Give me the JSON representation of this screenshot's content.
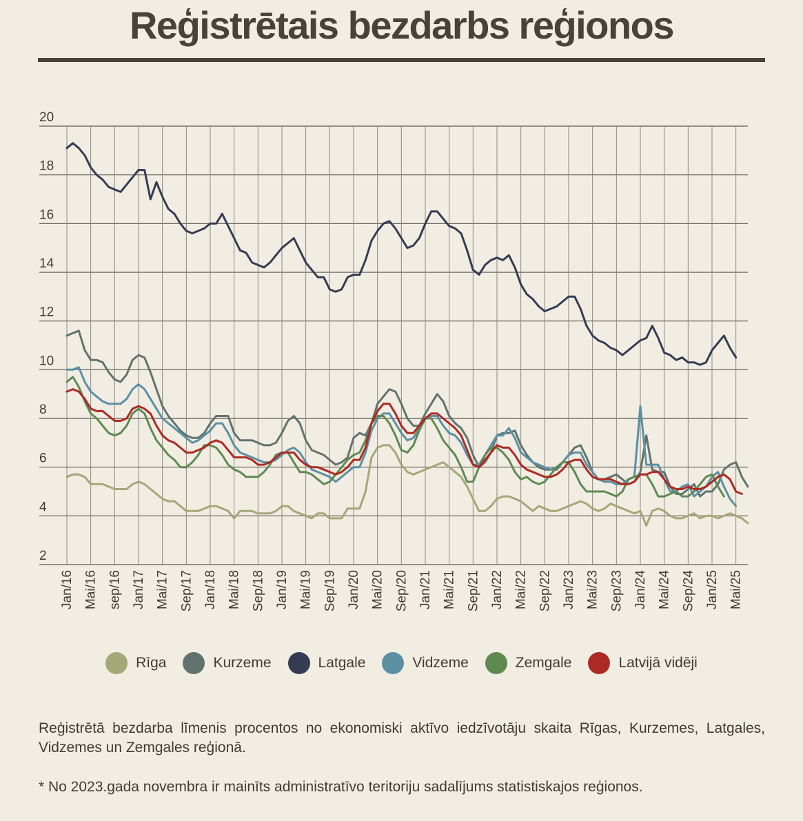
{
  "title": "Reģistrētais bezdarbs reģionos",
  "chart_data": {
    "type": "line",
    "ylim": [
      2,
      20
    ],
    "yticks": [
      "2",
      "4",
      "6",
      "8",
      "10",
      "12",
      "14",
      "16",
      "18",
      "20"
    ],
    "grid": true,
    "legend_position": "bottom",
    "x_tick_labels": [
      "Jan/16",
      "Mai/16",
      "sep/16",
      "Jan/17",
      "Mai/17",
      "Sep/17",
      "Jan/18",
      "Mai/18",
      "Sep/18",
      "Jan/19",
      "Mai/19",
      "Sep/19",
      "Jan/20",
      "Mai/20",
      "Sep/20",
      "Jan/21",
      "Mai/21",
      "Sep/21",
      "Jan/22",
      "Mai/22",
      "Sep/22",
      "Jan/23",
      "Mai/23",
      "Sep/23",
      "Jan/24",
      "Mai/24",
      "Sep/24",
      "Jan/25",
      "Mai/25"
    ],
    "series": [
      {
        "name": "Rīga",
        "color": "#a3a878",
        "values": [
          5.6,
          5.7,
          5.7,
          5.6,
          5.3,
          5.3,
          5.3,
          5.2,
          5.1,
          5.1,
          5.1,
          5.3,
          5.4,
          5.3,
          5.1,
          4.9,
          4.7,
          4.6,
          4.6,
          4.4,
          4.2,
          4.2,
          4.2,
          4.3,
          4.4,
          4.4,
          4.3,
          4.2,
          3.9,
          4.2,
          4.2,
          4.2,
          4.1,
          4.1,
          4.1,
          4.2,
          4.4,
          4.4,
          4.2,
          4.1,
          4.0,
          3.9,
          4.1,
          4.1,
          3.9,
          3.9,
          3.9,
          4.3,
          4.3,
          4.3,
          5.0,
          6.4,
          6.8,
          6.9,
          6.9,
          6.6,
          6.1,
          5.8,
          5.7,
          5.8,
          5.9,
          6.0,
          6.1,
          6.2,
          6.0,
          5.8,
          5.6,
          5.2,
          4.7,
          4.2,
          4.2,
          4.4,
          4.7,
          4.8,
          4.8,
          4.7,
          4.6,
          4.4,
          4.2,
          4.4,
          4.3,
          4.2,
          4.2,
          4.3,
          4.4,
          4.5,
          4.6,
          4.5,
          4.3,
          4.2,
          4.3,
          4.5,
          4.4,
          4.3,
          4.2,
          4.1,
          4.2,
          3.6,
          4.2,
          4.3,
          4.2,
          4.0,
          3.9,
          3.9,
          4.0,
          4.1,
          3.9,
          4.0,
          4.0,
          3.9,
          4.0,
          4.1,
          4.0,
          3.9,
          3.7
        ]
      },
      {
        "name": "Kurzeme",
        "color": "#62736e",
        "values": [
          11.4,
          11.5,
          11.6,
          10.8,
          10.4,
          10.4,
          10.3,
          9.9,
          9.6,
          9.5,
          9.8,
          10.4,
          10.6,
          10.5,
          9.9,
          9.2,
          8.5,
          8.1,
          7.8,
          7.5,
          7.3,
          7.2,
          7.2,
          7.4,
          7.8,
          8.1,
          8.1,
          8.1,
          7.4,
          7.1,
          7.1,
          7.1,
          7.0,
          6.9,
          6.9,
          7.0,
          7.4,
          7.9,
          8.1,
          7.8,
          7.1,
          6.7,
          6.6,
          6.5,
          6.3,
          6.1,
          6.2,
          6.4,
          7.2,
          7.4,
          7.3,
          7.8,
          8.6,
          8.9,
          9.2,
          9.1,
          8.6,
          8.0,
          7.7,
          7.7,
          8.2,
          8.6,
          9.0,
          8.7,
          8.1,
          7.8,
          7.6,
          7.2,
          6.5,
          6.0,
          6.2,
          6.6,
          7.3,
          7.4,
          7.4,
          7.5,
          6.9,
          6.5,
          6.2,
          6.0,
          5.9,
          5.9,
          5.9,
          6.2,
          6.5,
          6.8,
          6.9,
          6.4,
          5.8,
          5.5,
          5.5,
          5.6,
          5.7,
          5.5,
          5.3,
          5.4,
          5.8,
          7.3,
          5.9,
          5.8,
          5.8,
          5.2,
          4.9,
          4.9,
          5.1,
          5.3,
          4.8,
          5.0,
          5.0,
          5.3,
          5.9,
          6.1,
          6.2,
          5.6,
          5.2
        ]
      },
      {
        "name": "Latgale",
        "color": "#333c52",
        "values": [
          19.1,
          19.3,
          19.1,
          18.8,
          18.3,
          18.0,
          17.8,
          17.5,
          17.4,
          17.3,
          17.6,
          17.9,
          18.2,
          18.2,
          17.0,
          17.7,
          17.1,
          16.6,
          16.4,
          16.0,
          15.7,
          15.6,
          15.7,
          15.8,
          16.0,
          16.0,
          16.4,
          15.9,
          15.4,
          14.9,
          14.8,
          14.4,
          14.3,
          14.2,
          14.4,
          14.7,
          15.0,
          15.2,
          15.4,
          14.9,
          14.4,
          14.1,
          13.8,
          13.8,
          13.3,
          13.2,
          13.3,
          13.8,
          13.9,
          13.9,
          14.5,
          15.3,
          15.7,
          16.0,
          16.1,
          15.8,
          15.4,
          15.0,
          15.1,
          15.4,
          16.0,
          16.5,
          16.5,
          16.2,
          15.9,
          15.8,
          15.6,
          14.9,
          14.1,
          13.9,
          14.3,
          14.5,
          14.6,
          14.5,
          14.7,
          14.2,
          13.5,
          13.1,
          12.9,
          12.6,
          12.4,
          12.5,
          12.6,
          12.8,
          13.0,
          13.0,
          12.5,
          11.8,
          11.4,
          11.2,
          11.1,
          10.9,
          10.8,
          10.6,
          10.8,
          11.0,
          11.2,
          11.3,
          11.8,
          11.3,
          10.7,
          10.6,
          10.4,
          10.5,
          10.3,
          10.3,
          10.2,
          10.3,
          10.8,
          11.1,
          11.4,
          10.9,
          10.5
        ]
      },
      {
        "name": "Vidzeme",
        "color": "#5b90a3",
        "values": [
          10.0,
          10.0,
          10.1,
          9.5,
          9.1,
          8.9,
          8.7,
          8.6,
          8.6,
          8.6,
          8.8,
          9.2,
          9.4,
          9.2,
          8.8,
          8.4,
          8.0,
          7.8,
          7.6,
          7.4,
          7.2,
          7.0,
          7.1,
          7.3,
          7.5,
          7.8,
          7.8,
          7.4,
          6.9,
          6.6,
          6.5,
          6.4,
          6.3,
          6.2,
          6.2,
          6.3,
          6.5,
          6.7,
          6.8,
          6.6,
          6.2,
          5.9,
          5.8,
          5.7,
          5.6,
          5.4,
          5.6,
          5.8,
          6.0,
          6.0,
          6.6,
          7.5,
          8.0,
          8.2,
          8.2,
          7.8,
          7.4,
          7.1,
          7.2,
          7.6,
          8.0,
          8.1,
          8.1,
          7.7,
          7.4,
          7.3,
          7.0,
          6.5,
          6.1,
          6.1,
          6.5,
          6.9,
          7.3,
          7.3,
          7.6,
          7.2,
          6.6,
          6.4,
          6.2,
          6.1,
          6.0,
          5.9,
          6.0,
          6.2,
          6.5,
          6.6,
          6.6,
          6.1,
          5.8,
          5.5,
          5.4,
          5.4,
          5.3,
          5.3,
          5.5,
          5.6,
          8.5,
          6.1,
          6.1,
          6.1,
          5.5,
          5.0,
          5.0,
          5.2,
          5.3,
          4.8,
          5.0,
          5.2,
          5.6,
          5.8,
          5.2,
          4.7,
          4.4
        ]
      },
      {
        "name": "Zemgale",
        "color": "#5e8a52",
        "values": [
          9.5,
          9.7,
          9.3,
          8.7,
          8.2,
          8.0,
          7.7,
          7.4,
          7.3,
          7.4,
          7.7,
          8.2,
          8.4,
          8.2,
          7.6,
          7.1,
          6.8,
          6.5,
          6.3,
          6.0,
          6.0,
          6.2,
          6.5,
          6.9,
          6.9,
          6.8,
          6.5,
          6.1,
          5.9,
          5.8,
          5.6,
          5.6,
          5.6,
          5.8,
          6.1,
          6.5,
          6.6,
          6.6,
          6.2,
          5.8,
          5.8,
          5.7,
          5.5,
          5.3,
          5.4,
          5.7,
          6.0,
          6.3,
          6.5,
          6.6,
          7.1,
          7.8,
          8.1,
          8.1,
          7.8,
          7.3,
          6.7,
          6.6,
          6.9,
          7.5,
          8.0,
          8.0,
          7.6,
          7.1,
          6.8,
          6.5,
          6.0,
          5.4,
          5.4,
          6.0,
          6.5,
          6.8,
          6.8,
          6.6,
          6.3,
          5.8,
          5.5,
          5.6,
          5.4,
          5.3,
          5.4,
          5.7,
          6.0,
          6.2,
          6.2,
          5.8,
          5.3,
          5.0,
          5.0,
          5.0,
          5.0,
          4.9,
          4.8,
          5.0,
          5.5,
          5.6,
          5.7,
          5.7,
          5.3,
          4.8,
          4.8,
          4.9,
          5.0,
          4.8,
          4.8,
          5.0,
          5.3,
          5.6,
          5.7,
          5.2,
          4.8
        ]
      },
      {
        "name": "Latvijā vidēji",
        "color": "#ad2a24",
        "values": [
          9.1,
          9.2,
          9.1,
          8.8,
          8.4,
          8.3,
          8.3,
          8.1,
          7.9,
          7.9,
          8.0,
          8.4,
          8.5,
          8.4,
          8.2,
          7.7,
          7.3,
          7.1,
          7.0,
          6.8,
          6.6,
          6.6,
          6.7,
          6.8,
          7.0,
          7.1,
          7.0,
          6.7,
          6.4,
          6.4,
          6.4,
          6.3,
          6.1,
          6.1,
          6.2,
          6.4,
          6.6,
          6.6,
          6.6,
          6.3,
          6.1,
          6.0,
          6.0,
          5.9,
          5.8,
          5.7,
          5.8,
          6.0,
          6.3,
          6.3,
          6.8,
          7.8,
          8.3,
          8.6,
          8.6,
          8.2,
          7.7,
          7.4,
          7.4,
          7.7,
          8.0,
          8.2,
          8.2,
          8.0,
          7.8,
          7.6,
          7.3,
          6.7,
          6.1,
          6.0,
          6.3,
          6.6,
          6.9,
          6.8,
          6.8,
          6.5,
          6.1,
          5.9,
          5.8,
          5.7,
          5.6,
          5.6,
          5.7,
          5.9,
          6.2,
          6.3,
          6.3,
          5.9,
          5.6,
          5.5,
          5.5,
          5.5,
          5.4,
          5.3,
          5.3,
          5.4,
          5.7,
          5.7,
          5.8,
          5.8,
          5.5,
          5.2,
          5.1,
          5.1,
          5.2,
          5.1,
          5.1,
          5.2,
          5.4,
          5.6,
          5.7,
          5.5,
          5.0,
          4.9
        ]
      }
    ]
  },
  "notes": [
    "Reģistrētā bezdarba līmenis procentos no ekonomiski aktīvo iedzīvotāju skaita Rīgas, Kurzemes, Latgales, Vidzemes un Zemgales reģionā.",
    "* No 2023.gada novembra ir mainīts administratīvo teritoriju sadalījums statistiskajos reģionos."
  ]
}
